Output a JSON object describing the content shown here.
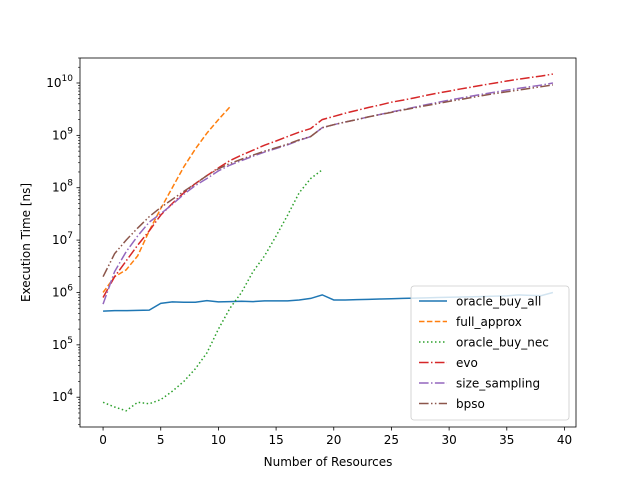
{
  "chart_data": {
    "type": "line",
    "title": "",
    "xlabel": "Number of Resources",
    "ylabel": "Execution Time [ns]",
    "xlim": [
      -2,
      41
    ],
    "ylim": [
      2700,
      30000000000.0
    ],
    "yscale": "log",
    "grid": false,
    "legend_position": "bottom-right",
    "xticks": [
      0,
      5,
      10,
      15,
      20,
      25,
      30,
      35,
      40
    ],
    "yticks": [
      10000,
      100000,
      1000000,
      10000000,
      100000000,
      1000000000,
      10000000000
    ],
    "series": [
      {
        "name": "oracle_buy_all",
        "color": "#1f77b4",
        "dash": "solid",
        "x": [
          0,
          1,
          2,
          3,
          4,
          5,
          6,
          7,
          8,
          9,
          10,
          11,
          12,
          13,
          14,
          15,
          16,
          17,
          18,
          19,
          20,
          21,
          22,
          23,
          24,
          25,
          26,
          27,
          28,
          29,
          30,
          31,
          32,
          33,
          34,
          35,
          36,
          37,
          38,
          39
        ],
        "y": [
          440000,
          450000,
          450000,
          455000,
          460000,
          620000,
          660000,
          650000,
          650000,
          700000,
          660000,
          670000,
          680000,
          670000,
          690000,
          690000,
          690000,
          720000,
          770000,
          900000,
          720000,
          720000,
          730000,
          740000,
          750000,
          760000,
          770000,
          780000,
          790000,
          800000,
          810000,
          820000,
          830000,
          840000,
          850000,
          860000,
          900000,
          880000,
          870000,
          1000000
        ]
      },
      {
        "name": "full_approx",
        "color": "#ff7f0e",
        "dash": "dashed",
        "x": [
          0,
          1,
          2,
          3,
          4,
          5,
          6,
          7,
          8,
          9,
          10,
          11
        ],
        "y": [
          1000000,
          2000000,
          2700000,
          5000000,
          15000000,
          40000000,
          100000000,
          250000000,
          550000000,
          1100000000,
          2000000000,
          3500000000
        ]
      },
      {
        "name": "oracle_buy_nec",
        "color": "#2ca02c",
        "dash": "dotted",
        "x": [
          0,
          1,
          2,
          3,
          4,
          5,
          6,
          7,
          8,
          9,
          10,
          11,
          12,
          13,
          14,
          15,
          16,
          17,
          18,
          19
        ],
        "y": [
          8000,
          6500,
          5500,
          8000,
          7500,
          9000,
          13000,
          20000,
          35000,
          70000,
          200000,
          500000,
          1000000,
          2500000,
          5000000,
          12000000,
          30000000,
          80000000,
          150000000,
          220000000
        ]
      },
      {
        "name": "evo",
        "color": "#d62728",
        "dash": "dashdot",
        "x": [
          0,
          1,
          2,
          3,
          4,
          5,
          6,
          7,
          8,
          9,
          10,
          11,
          12,
          13,
          14,
          15,
          16,
          17,
          18,
          19,
          20,
          21,
          22,
          23,
          24,
          25,
          26,
          27,
          28,
          29,
          30,
          31,
          32,
          33,
          34,
          35,
          36,
          37,
          38,
          39
        ],
        "y": [
          800000,
          2000000,
          4000000,
          8000000,
          15000000,
          30000000,
          50000000,
          80000000,
          120000000,
          170000000,
          240000000,
          330000000,
          420000000,
          520000000,
          650000000,
          780000000,
          950000000,
          1150000000,
          1350000000,
          2000000000,
          2300000000,
          2650000000,
          3000000000,
          3400000000,
          3800000000,
          4300000000,
          4700000000,
          5200000000,
          5800000000,
          6400000000,
          7000000000,
          7700000000,
          8400000000,
          9200000000,
          10000000000,
          10900000000,
          11800000000,
          12700000000,
          13600000000,
          14800000000
        ]
      },
      {
        "name": "size_sampling",
        "color": "#9467bd",
        "dash": "dashdot",
        "x": [
          0,
          1,
          2,
          3,
          4,
          5,
          6,
          7,
          8,
          9,
          10,
          11,
          12,
          13,
          14,
          15,
          16,
          17,
          18,
          19,
          20,
          21,
          22,
          23,
          24,
          25,
          26,
          27,
          28,
          29,
          30,
          31,
          32,
          33,
          34,
          35,
          36,
          37,
          38,
          39
        ],
        "y": [
          600000,
          2500000,
          6000000,
          12000000,
          22000000,
          32000000,
          48000000,
          75000000,
          110000000,
          150000000,
          210000000,
          270000000,
          330000000,
          400000000,
          480000000,
          560000000,
          660000000,
          800000000,
          950000000,
          1400000000,
          1600000000,
          1800000000,
          2000000000,
          2250000000,
          2500000000,
          2800000000,
          3100000000,
          3450000000,
          3850000000,
          4250000000,
          4700000000,
          5150000000,
          5650000000,
          6150000000,
          6700000000,
          7300000000,
          7900000000,
          8500000000,
          9100000000,
          10000000000
        ]
      },
      {
        "name": "bpso",
        "color": "#8c564b",
        "dash": "dashdotdot",
        "x": [
          0,
          1,
          2,
          3,
          4,
          5,
          6,
          7,
          8,
          9,
          10,
          11,
          12,
          13,
          14,
          15,
          16,
          17,
          18,
          19,
          20,
          21,
          22,
          23,
          24,
          25,
          26,
          27,
          28,
          29,
          30,
          31,
          32,
          33,
          34,
          35,
          36,
          37,
          38,
          39
        ],
        "y": [
          2000000,
          5500000,
          10000000,
          17000000,
          28000000,
          42000000,
          60000000,
          85000000,
          120000000,
          170000000,
          230000000,
          290000000,
          350000000,
          420000000,
          500000000,
          580000000,
          680000000,
          820000000,
          950000000,
          1400000000,
          1600000000,
          1800000000,
          2000000000,
          2250000000,
          2500000000,
          2750000000,
          3050000000,
          3350000000,
          3700000000,
          4050000000,
          4450000000,
          4850000000,
          5300000000,
          5800000000,
          6300000000,
          6800000000,
          7300000000,
          7900000000,
          8500000000,
          9200000000
        ]
      }
    ]
  }
}
